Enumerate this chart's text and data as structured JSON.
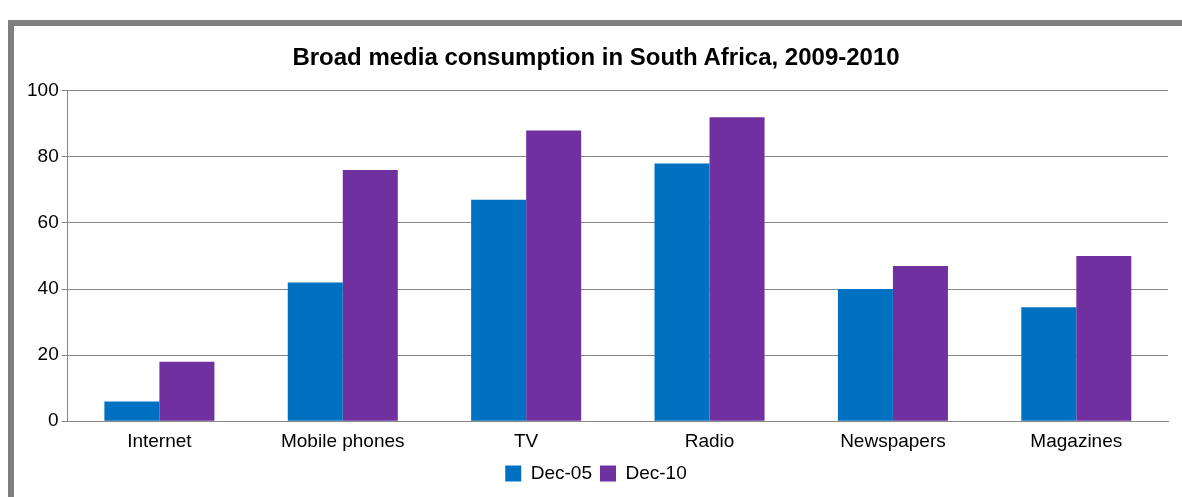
{
  "chart_data": {
    "type": "bar",
    "title": "Broad media consumption in South Africa, 2009-2010",
    "categories": [
      "Internet",
      "Mobile phones",
      "TV",
      "Radio",
      "Newspapers",
      "Magazines"
    ],
    "series": [
      {
        "name": "Dec-05",
        "color": "#0070c0",
        "values": [
          6,
          42,
          67,
          78,
          40,
          34.5
        ]
      },
      {
        "name": "Dec-10",
        "color": "#7030a0",
        "values": [
          18,
          76,
          88,
          92,
          47,
          50
        ]
      }
    ],
    "ylim": [
      0,
      100
    ],
    "yticks": [
      0,
      20,
      40,
      60,
      80,
      100
    ],
    "grid": "y",
    "legend": "bottom"
  }
}
